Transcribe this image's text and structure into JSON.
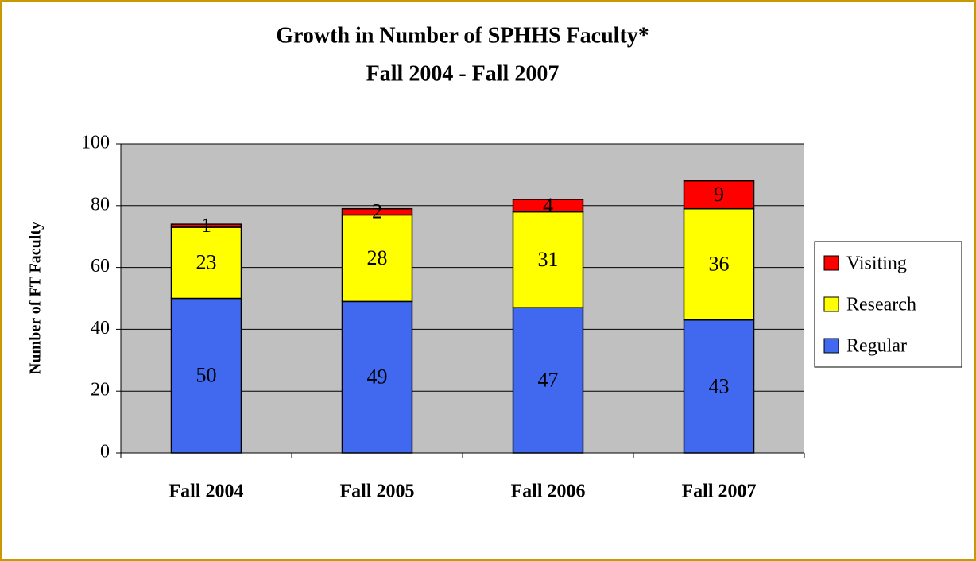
{
  "chart_data": {
    "type": "stacked_bar",
    "title": "Growth in Number of SPHHS Faculty*",
    "subtitle": "Fall 2004 - Fall 2007",
    "y_label": "Number of FT Faculty",
    "categories": [
      "Fall 2004",
      "Fall 2005",
      "Fall 2006",
      "Fall 2007"
    ],
    "series": [
      {
        "name": "Regular",
        "color": "#4169f0",
        "values": [
          50,
          49,
          47,
          43
        ]
      },
      {
        "name": "Research",
        "color": "#ffff00",
        "values": [
          23,
          28,
          31,
          36
        ]
      },
      {
        "name": "Visiting",
        "color": "#ff0000",
        "values": [
          1,
          2,
          4,
          9
        ]
      }
    ],
    "ylim": [
      0,
      100
    ],
    "yticks": [
      0,
      20,
      40,
      60,
      80,
      100
    ],
    "grid": true,
    "legend": "right"
  }
}
